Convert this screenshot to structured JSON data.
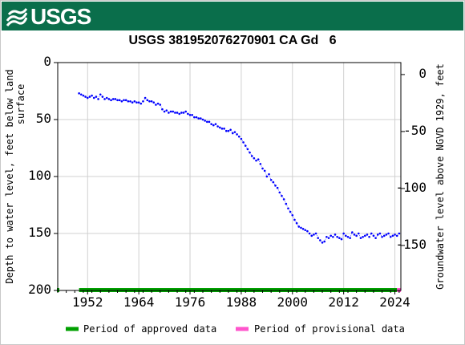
{
  "banner": {
    "logo_text": "USGS",
    "logo_icon": "usgs-wave-icon",
    "color": "#0a6e4b"
  },
  "chart_data": {
    "type": "scatter",
    "title": "USGS 381952076270901 CA Gd   6",
    "ylabel_left": "Depth to water level, feet below land\nsurface",
    "ylabel_right": "Groundwater level above NGVD 1929, feet",
    "xlim": [
      1945.0,
      2025.4
    ],
    "ylim_left": [
      0,
      200
    ],
    "y_left_ticks": [
      0,
      50,
      100,
      150,
      200
    ],
    "y_right_ticks": [
      0,
      -50,
      -100,
      -150
    ],
    "right_axis_offset": 10.5,
    "x_ticks": [
      1952,
      1964,
      1976,
      1988,
      2000,
      2012,
      2024
    ],
    "grid": true,
    "series_color": "#0000ff",
    "series": [
      {
        "x": [
          1950.0,
          1950.5,
          1951.0,
          1951.5,
          1952.0,
          1952.5,
          1953.0,
          1953.5,
          1954.0,
          1954.5,
          1955.0,
          1955.5,
          1956.0,
          1956.5,
          1957.0,
          1957.5,
          1958.0,
          1958.5,
          1959.0,
          1959.5,
          1960.0,
          1960.5,
          1961.0,
          1961.5,
          1962.0,
          1962.5,
          1963.0,
          1963.5,
          1964.0,
          1964.5,
          1965.0,
          1965.5,
          1966.0,
          1966.5,
          1967.0,
          1967.5,
          1968.0,
          1968.5,
          1969.0,
          1969.5,
          1970.0,
          1970.5,
          1971.0,
          1971.5,
          1972.0,
          1972.5,
          1973.0,
          1973.5,
          1974.0,
          1974.5,
          1975.0,
          1975.5,
          1976.0,
          1976.5,
          1977.0,
          1977.5,
          1978.0,
          1978.5,
          1979.0,
          1979.5,
          1980.0,
          1980.5,
          1981.0,
          1981.5,
          1982.0,
          1982.5,
          1983.0,
          1983.5,
          1984.0,
          1984.5,
          1985.0,
          1985.5,
          1986.0,
          1986.5,
          1987.0,
          1987.5,
          1988.0,
          1988.5,
          1989.0,
          1989.5,
          1990.0,
          1990.5,
          1991.0,
          1991.5,
          1992.0,
          1992.5,
          1993.0,
          1993.5,
          1994.0,
          1994.5,
          1995.0,
          1995.5,
          1996.0,
          1996.5,
          1997.0,
          1997.5,
          1998.0,
          1998.5,
          1999.0,
          1999.5,
          2000.0,
          2000.5,
          2001.0,
          2001.5,
          2002.0,
          2002.5,
          2003.0,
          2003.5,
          2004.0,
          2004.5,
          2005.0,
          2005.5,
          2006.0,
          2006.5,
          2007.0,
          2007.5,
          2008.0,
          2008.5,
          2009.0,
          2009.5,
          2010.0,
          2010.5,
          2011.0,
          2011.5,
          2012.0,
          2012.5,
          2013.0,
          2013.5,
          2014.0,
          2014.5,
          2015.0,
          2015.5,
          2016.0,
          2016.5,
          2017.0,
          2017.5,
          2018.0,
          2018.5,
          2019.0,
          2019.5,
          2020.0,
          2020.5,
          2021.0,
          2021.5,
          2022.0,
          2022.5,
          2023.0,
          2023.5,
          2024.0,
          2024.5,
          2025.0
        ],
        "y": [
          27,
          28,
          29,
          30,
          31,
          30,
          29,
          31,
          30,
          32,
          28,
          30,
          32,
          31,
          32,
          33,
          32,
          32,
          33,
          33,
          34,
          33,
          33,
          34,
          34,
          35,
          34,
          35,
          35,
          36,
          34,
          31,
          33,
          34,
          34,
          35,
          37,
          36,
          37,
          41,
          43,
          42,
          44,
          43,
          43,
          44,
          44,
          45,
          44,
          44,
          43,
          45,
          46,
          46,
          48,
          48,
          49,
          49,
          50,
          51,
          52,
          52,
          54,
          55,
          54,
          56,
          57,
          58,
          58,
          60,
          60,
          59,
          62,
          61,
          63,
          65,
          67,
          70,
          73,
          76,
          79,
          82,
          84,
          86,
          85,
          89,
          93,
          95,
          100,
          98,
          103,
          105,
          108,
          110,
          114,
          117,
          120,
          124,
          128,
          131,
          134,
          138,
          141,
          144,
          145,
          146,
          147,
          148,
          150,
          152,
          151,
          150,
          154,
          156,
          158,
          157,
          153,
          154,
          152,
          153,
          151,
          153,
          154,
          155,
          150,
          152,
          153,
          154,
          149,
          151,
          152,
          150,
          154,
          153,
          152,
          151,
          153,
          150,
          152,
          154,
          151,
          150,
          153,
          152,
          151,
          150,
          153,
          152,
          151,
          152,
          150
        ]
      }
    ],
    "legend": [
      {
        "label": "Period of approved data",
        "color": "#00a000"
      },
      {
        "label": "Period of provisional data",
        "color": "#ff55cc"
      }
    ],
    "legend_position": "bottom",
    "approved_period": [
      1950.0,
      2024.5
    ],
    "provisional_period": [
      2024.5,
      2025.4
    ]
  }
}
